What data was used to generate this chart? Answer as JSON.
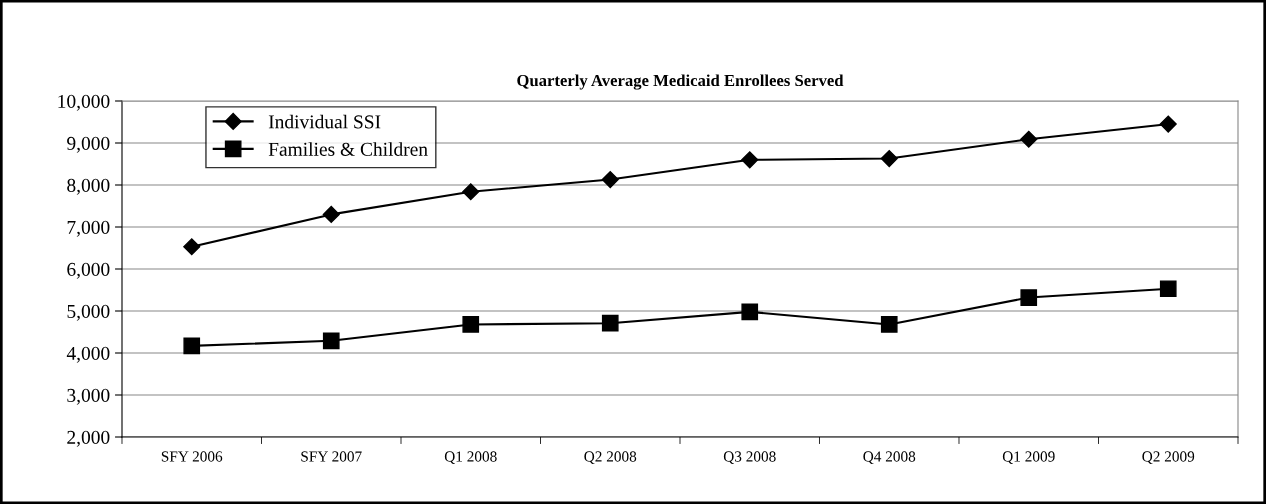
{
  "chart_data": {
    "type": "line",
    "title": "Quarterly Average Medicaid Enrollees Served",
    "categories": [
      "SFY 2006",
      "SFY 2007",
      "Q1 2008",
      "Q2 2008",
      "Q3 2008",
      "Q4 2008",
      "Q1 2009",
      "Q2 2009"
    ],
    "series": [
      {
        "name": "Individual SSI",
        "color": "#000000",
        "marker": "diamond",
        "values": [
          6530,
          7300,
          7840,
          8130,
          8600,
          8630,
          9090,
          9450
        ]
      },
      {
        "name": "Families & Children",
        "color": "#000000",
        "marker": "square",
        "values": [
          4170,
          4290,
          4680,
          4710,
          4980,
          4680,
          5320,
          5530
        ]
      }
    ],
    "ylim": [
      2000,
      10000
    ],
    "yticks": [
      {
        "value": 2000,
        "label": "2,000"
      },
      {
        "value": 3000,
        "label": "3,000"
      },
      {
        "value": 4000,
        "label": "4,000"
      },
      {
        "value": 5000,
        "label": "5,000"
      },
      {
        "value": 6000,
        "label": "6,000"
      },
      {
        "value": 7000,
        "label": "7,000"
      },
      {
        "value": 8000,
        "label": "8,000"
      },
      {
        "value": 9000,
        "label": "9,000"
      },
      {
        "value": 10000,
        "label": "10,000"
      }
    ],
    "grid": "y",
    "legend": "top left",
    "line_style": "solid"
  }
}
